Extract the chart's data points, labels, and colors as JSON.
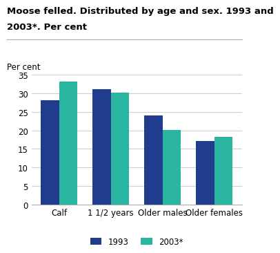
{
  "title_line1": "Moose felled. Distributed by age and sex. 1993 and",
  "title_line2": "2003*. Per cent",
  "ylabel": "Per cent",
  "categories": [
    "Calf",
    "1 1/2 years",
    "Older males",
    "Older females"
  ],
  "series": [
    {
      "label": "1993",
      "values": [
        28.2,
        31.2,
        24.1,
        17.1
      ],
      "color": "#1f3d8c"
    },
    {
      "label": "2003*",
      "values": [
        33.2,
        30.1,
        20.1,
        18.2
      ],
      "color": "#2ab5a0"
    }
  ],
  "ylim": [
    0,
    35
  ],
  "yticks": [
    0,
    5,
    10,
    15,
    20,
    25,
    30,
    35
  ],
  "bar_width": 0.35,
  "background_color": "#ffffff",
  "grid_color": "#cccccc",
  "title_fontsize": 9.5,
  "axis_fontsize": 8.5,
  "tick_fontsize": 8.5,
  "legend_fontsize": 8.5
}
